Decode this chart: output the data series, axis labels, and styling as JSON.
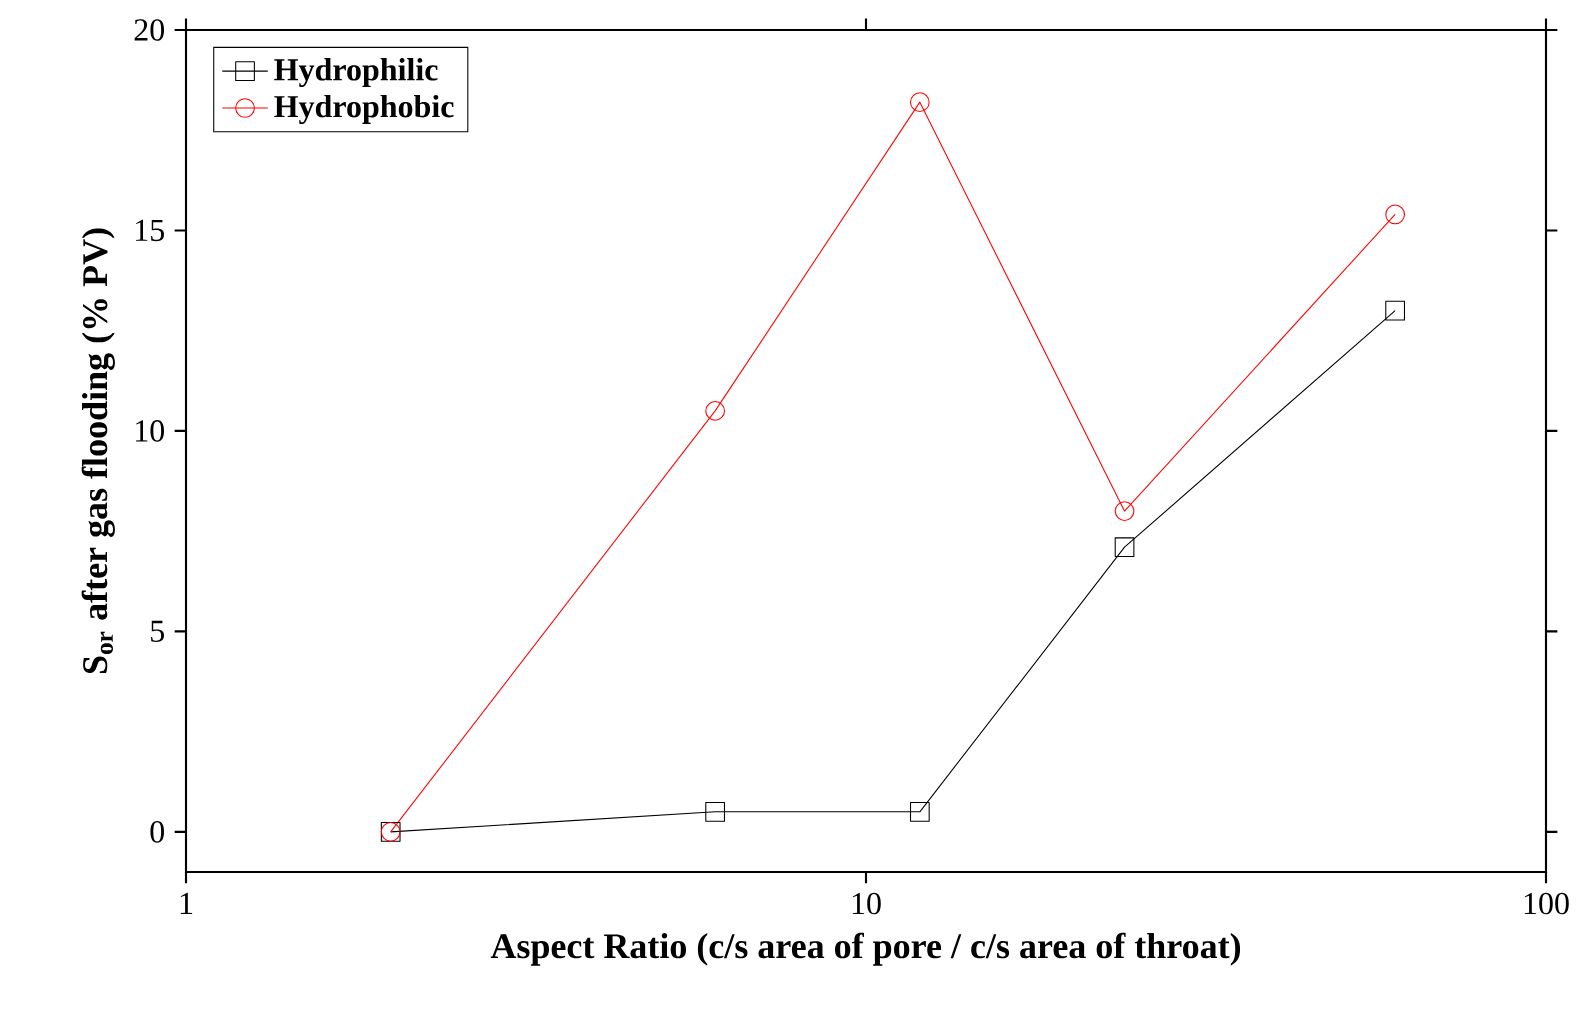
{
  "chart_data": {
    "type": "line",
    "xlabel": "Aspect Ratio (c/s area of pore / c/s area of throat)",
    "ylabel": "S$_{or}$ after gas flooding (% PV)",
    "log": "x",
    "xlim": [
      1,
      100
    ],
    "xticks": [
      1,
      10,
      100
    ],
    "ylim": [
      -1,
      20
    ],
    "yticks": [
      0,
      5,
      10,
      15,
      20
    ],
    "legend": "top left",
    "grid": false,
    "line_style": "solid",
    "series": [
      {
        "name": "Hydrophilic",
        "color": "#000000",
        "marker": "square",
        "x": [
          2,
          6,
          12,
          24,
          60
        ],
        "values": [
          0,
          0.5,
          0.5,
          7.1,
          13
        ]
      },
      {
        "name": "Hydrophobic",
        "color": "#ff0000",
        "marker": "circle",
        "x": [
          2,
          6,
          12,
          24,
          60
        ],
        "values": [
          0,
          10.5,
          18.2,
          8,
          15.4
        ]
      }
    ]
  }
}
